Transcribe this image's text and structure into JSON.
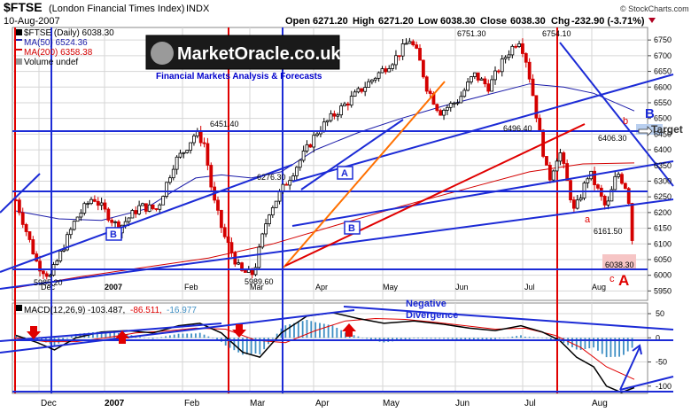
{
  "header": {
    "symbol": "$FTSE",
    "name": "(London Financial Times Index)",
    "exchange": "INDX",
    "date": "10-Aug-2007",
    "open_label": "Open",
    "open": "6271.20",
    "high_label": "High",
    "high": "6271.20",
    "low_label": "Low",
    "low": "6038.30",
    "close_label": "Close",
    "close": "6038.30",
    "chg_label": "Chg",
    "chg": "-232.90 (-3.71%)",
    "copyright": "© StockCharts.com"
  },
  "legend": {
    "price": "$FTSE (Daily) 6038.30",
    "ma50": "MA(50) 6524.36",
    "ma200": "MA(200) 6358.38",
    "volume": "Volume undef"
  },
  "logo": {
    "title": "MarketOracle.co.uk",
    "subtitle": "Financial Markets Analysis & Forecasts"
  },
  "macd_legend": {
    "label": "MACD(12,26,9)",
    "v1": "-103.487,",
    "v2": "-86.511,",
    "v3": "-16.977"
  },
  "annotations": {
    "wave_a1": "A",
    "wave_b1": "B",
    "wave_b2": "B",
    "wave_b_big": "B",
    "wave_a_big": "A",
    "small_a": "a",
    "small_b": "b",
    "small_c": "c",
    "target": "Target",
    "divergence_line1": "Negative",
    "divergence_line2": "Divergence"
  },
  "price_labels": {
    "p1": "5985.20",
    "p2": "6451.40",
    "p3": "6276.30",
    "p4": "5989.60",
    "p5": "6751.30",
    "p6": "6754.10",
    "p7": "6496.40",
    "p8": "6406.30",
    "p9": "6161.50",
    "p10": "6038.30"
  },
  "colors": {
    "up": "#000000",
    "down": "#d40000",
    "ma50": "#1a1aa8",
    "ma200": "#d40000",
    "trend": "#1c2bd6",
    "orange": "#ff7000",
    "grid": "#d6d6d6",
    "hist": "#3f8fc4"
  },
  "chart_data": [
    {
      "type": "line",
      "title": "",
      "x_tick_labels": [
        "Dec",
        "2007",
        "Feb",
        "Mar",
        "Apr",
        "May",
        "Jun",
        "Jul",
        "Aug"
      ],
      "y_ticks": [
        5950,
        6000,
        6050,
        6100,
        6150,
        6200,
        6250,
        6300,
        6350,
        6400,
        6450,
        6500,
        6550,
        6600,
        6650,
        6700,
        6750
      ],
      "ylim": [
        5920,
        6790
      ],
      "grid": true,
      "series": [
        {
          "name": "$FTSE (Daily)",
          "x": [
            0,
            10,
            16,
            28,
            36,
            48,
            58,
            66,
            74,
            79,
            84,
            88,
            92,
            97,
            105,
            111,
            118,
            125,
            134,
            141,
            150,
            161,
            169,
            177,
            184,
            188,
            192,
            198,
            207,
            214,
            221,
            229,
            235,
            238,
            241,
            244,
            249,
            254,
            261,
            268,
            276,
            281,
            286,
            289
          ],
          "y": [
            6240,
            6035,
            5995,
            6180,
            6250,
            6150,
            6220,
            6210,
            6360,
            6400,
            6455,
            6420,
            6250,
            6130,
            6010,
            6005,
            6200,
            6280,
            6380,
            6460,
            6520,
            6590,
            6640,
            6690,
            6751,
            6700,
            6600,
            6520,
            6560,
            6640,
            6600,
            6700,
            6754,
            6700,
            6600,
            6480,
            6300,
            6400,
            6200,
            6330,
            6210,
            6330,
            6270,
            6038
          ]
        },
        {
          "name": "MA(50)",
          "x": [
            0,
            20,
            40,
            60,
            74,
            84,
            96,
            110,
            124,
            140,
            160,
            180,
            200,
            220,
            240,
            256,
            270,
            289
          ],
          "y": [
            6205,
            6180,
            6175,
            6210,
            6270,
            6310,
            6320,
            6310,
            6330,
            6400,
            6455,
            6500,
            6540,
            6575,
            6610,
            6600,
            6580,
            6524
          ]
        },
        {
          "name": "MA(200)",
          "x": [
            0,
            30,
            60,
            90,
            120,
            150,
            180,
            210,
            240,
            265,
            289
          ],
          "y": [
            5960,
            5995,
            6025,
            6055,
            6100,
            6160,
            6220,
            6275,
            6330,
            6355,
            6358
          ]
        }
      ]
    },
    {
      "type": "line",
      "title": "",
      "y_ticks": [
        50,
        0,
        -50,
        -100
      ],
      "ylim": [
        -115,
        72
      ],
      "series": [
        {
          "name": "MACD(12,26,9)",
          "x": [
            0,
            10,
            18,
            28,
            40,
            52,
            64,
            76,
            86,
            96,
            106,
            114,
            124,
            136,
            148,
            160,
            172,
            186,
            200,
            212,
            224,
            236,
            246,
            254,
            262,
            270,
            276,
            283,
            289
          ],
          "y": [
            5,
            -10,
            -25,
            0,
            12,
            15,
            10,
            25,
            30,
            10,
            -30,
            -40,
            10,
            45,
            52,
            40,
            30,
            35,
            28,
            20,
            15,
            25,
            12,
            -5,
            -40,
            -60,
            -100,
            -113,
            -103
          ]
        },
        {
          "name": "Signal",
          "x": [
            0,
            14,
            28,
            42,
            56,
            70,
            84,
            98,
            112,
            126,
            140,
            154,
            168,
            182,
            196,
            210,
            224,
            238,
            252,
            264,
            276,
            289
          ],
          "y": [
            0,
            -8,
            -8,
            0,
            10,
            14,
            20,
            18,
            -5,
            -10,
            15,
            35,
            40,
            38,
            32,
            25,
            18,
            20,
            5,
            -20,
            -60,
            -86
          ]
        }
      ]
    }
  ]
}
